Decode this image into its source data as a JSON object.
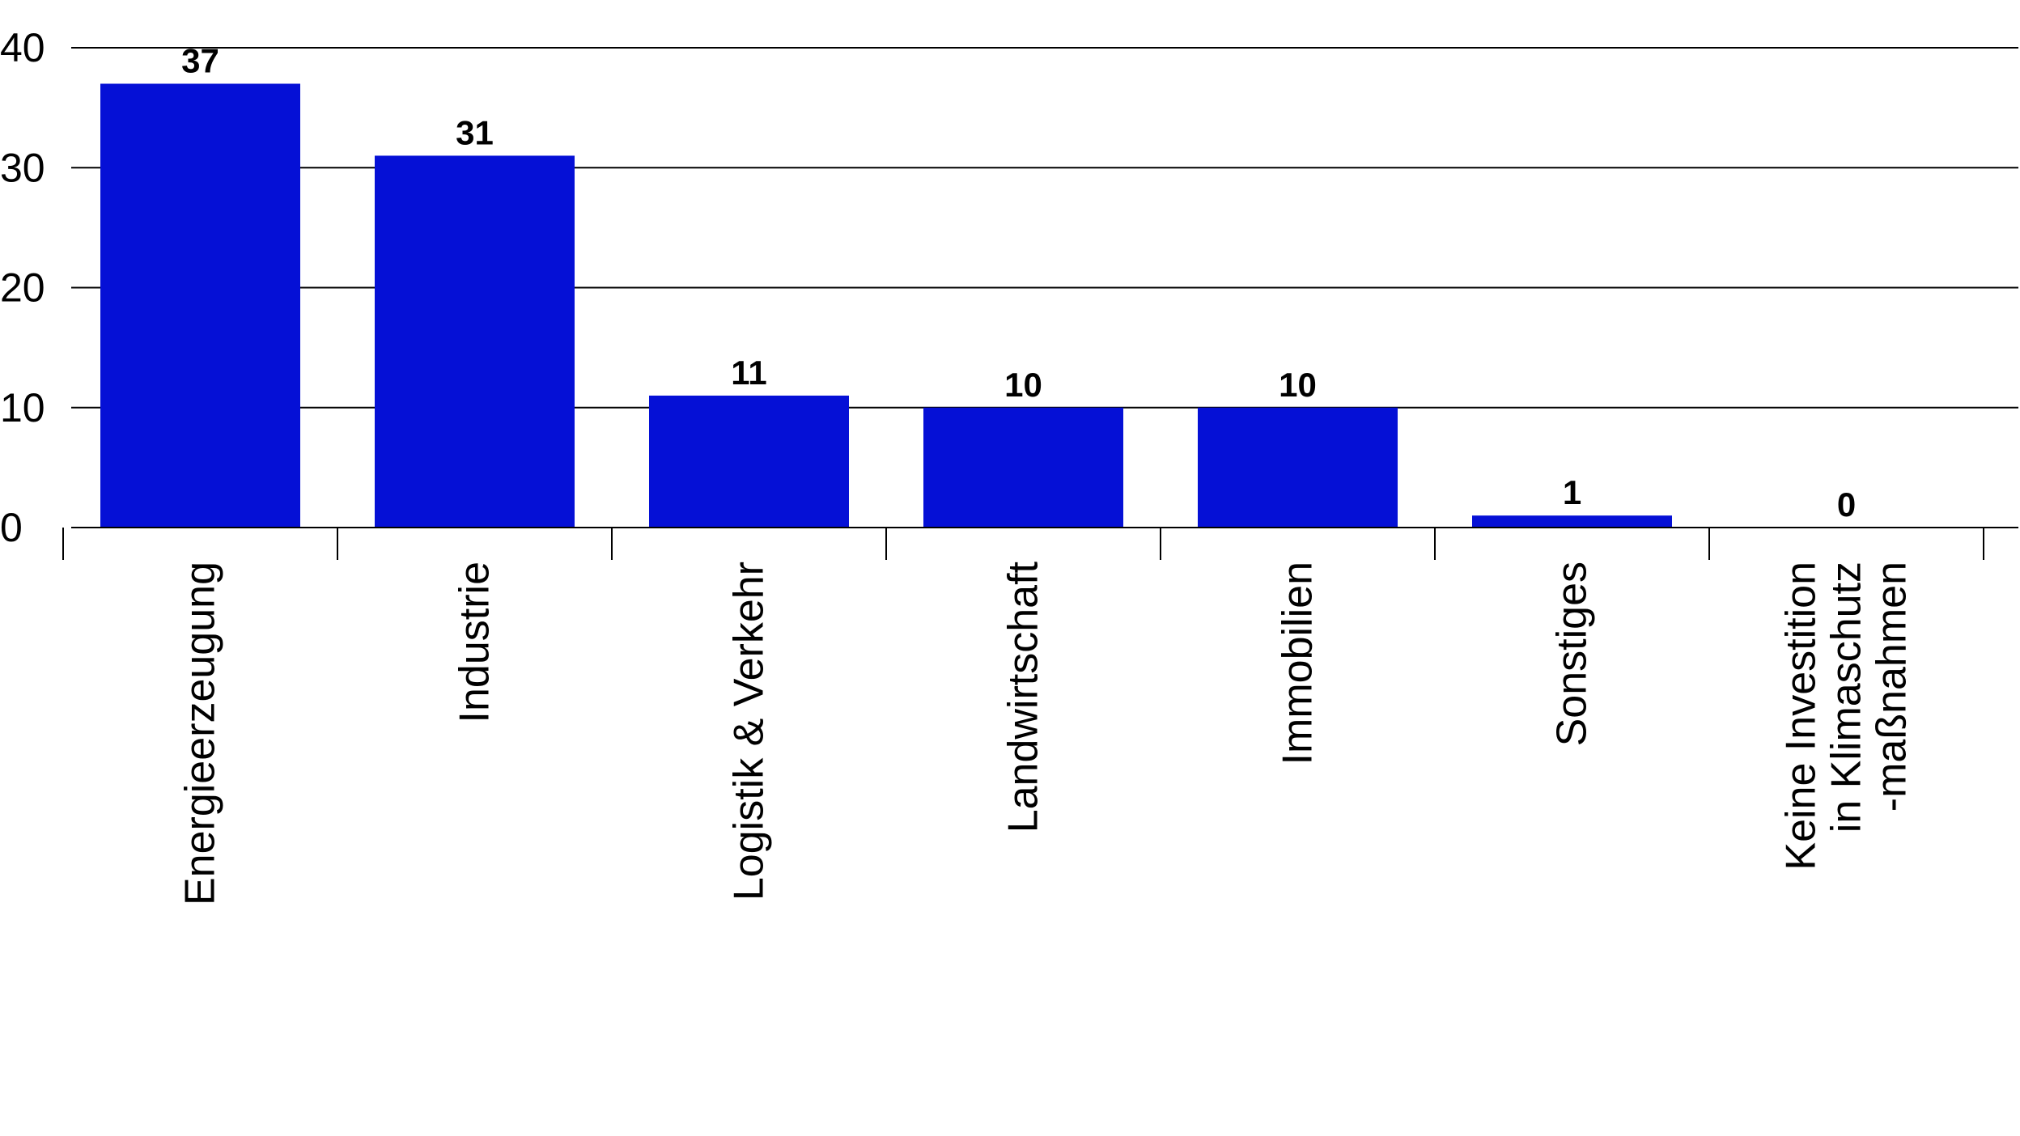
{
  "chart_data": {
    "type": "bar",
    "categories": [
      [
        "Energieerzeugung"
      ],
      [
        "Industrie"
      ],
      [
        "Logistik & Verkehr"
      ],
      [
        "Landwirtschaft"
      ],
      [
        "Immobilien"
      ],
      [
        "Sonstiges"
      ],
      [
        "Keine Investition",
        "in Klimaschutz",
        "-maßnahmen"
      ]
    ],
    "values": [
      37,
      31,
      11,
      10,
      10,
      1,
      0
    ],
    "data_labels": [
      "37",
      "31",
      "11",
      "10",
      "10",
      "1",
      "0"
    ],
    "ylim": [
      0,
      40
    ],
    "yticks": [
      0,
      10,
      20,
      30,
      40
    ],
    "grid": true,
    "bar_color": "#0510d6",
    "text_color": "#000000",
    "grid_color": "#000000"
  }
}
